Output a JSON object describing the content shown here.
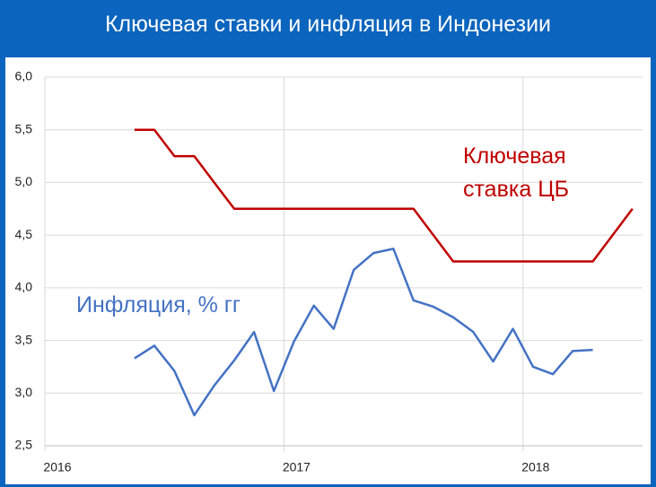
{
  "chart_data": {
    "type": "line",
    "title": "Ключевая ставки и инфляция в Индонезии",
    "x": [
      2016.375,
      2016.458,
      2016.542,
      2016.625,
      2016.708,
      2016.792,
      2016.875,
      2016.958,
      2017.042,
      2017.125,
      2017.208,
      2017.292,
      2017.375,
      2017.458,
      2017.542,
      2017.625,
      2017.708,
      2017.792,
      2017.875,
      2017.958,
      2018.042,
      2018.125,
      2018.208,
      2018.292,
      2018.375,
      2018.458
    ],
    "series": [
      {
        "name": "Ключевая ставка ЦБ",
        "color": "#c00000",
        "values": [
          5.5,
          5.5,
          5.25,
          5.25,
          5.0,
          4.75,
          4.75,
          4.75,
          4.75,
          4.75,
          4.75,
          4.75,
          4.75,
          4.75,
          4.75,
          4.5,
          4.25,
          4.25,
          4.25,
          4.25,
          4.25,
          4.25,
          4.25,
          4.25,
          4.5,
          4.75
        ]
      },
      {
        "name": "Инфляция, % гг",
        "color": "#4472c4",
        "values": [
          3.33,
          3.45,
          3.21,
          2.79,
          3.07,
          3.31,
          3.58,
          3.02,
          3.49,
          3.83,
          3.61,
          4.17,
          4.33,
          4.37,
          3.88,
          3.82,
          3.72,
          3.58,
          3.3,
          3.61,
          3.25,
          3.18,
          3.4,
          3.41,
          null,
          null
        ]
      }
    ],
    "xlim": [
      2016,
      2018.5
    ],
    "xticks": [
      2016,
      2017,
      2018
    ],
    "ylim": [
      2.5,
      6.0
    ],
    "yticks": [
      {
        "value": 2.5,
        "label": "2,5"
      },
      {
        "value": 3.0,
        "label": "3,0"
      },
      {
        "value": 3.5,
        "label": "3,5"
      },
      {
        "value": 4.0,
        "label": "4,0"
      },
      {
        "value": 4.5,
        "label": "4,5"
      },
      {
        "value": 5.0,
        "label": "5,0"
      },
      {
        "value": 5.5,
        "label": "5,5"
      },
      {
        "value": 6.0,
        "label": "6,0"
      }
    ],
    "grid": true
  }
}
